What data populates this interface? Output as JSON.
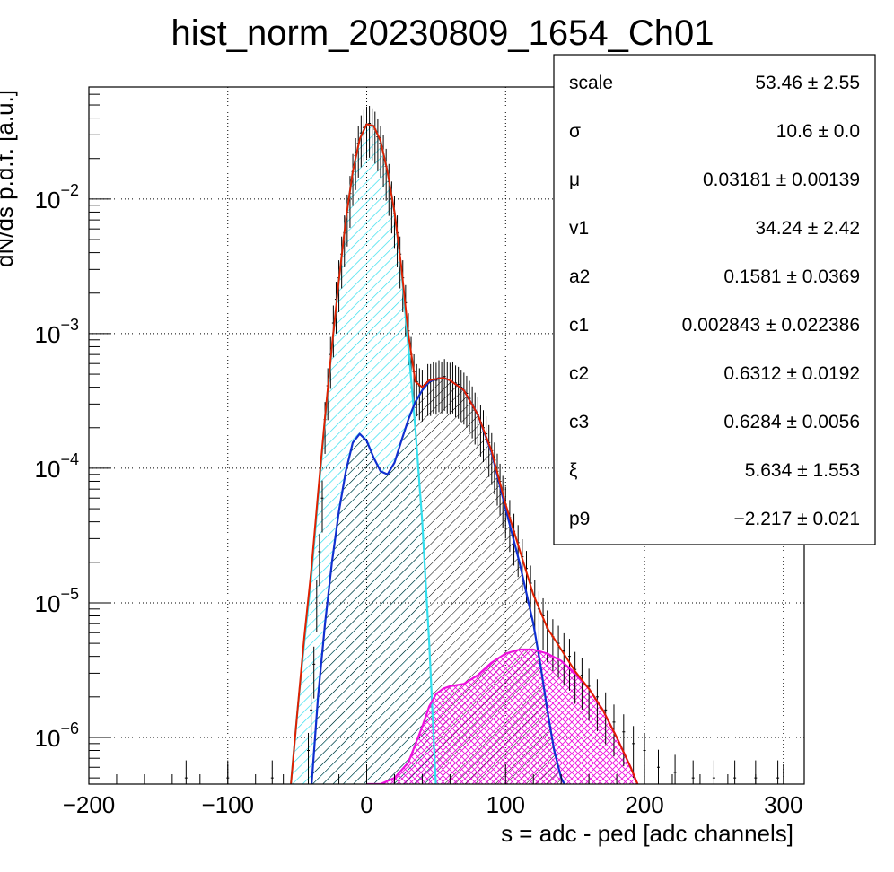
{
  "chart_data": {
    "type": "line",
    "title": "hist_norm_20230809_1654_Ch01",
    "xlabel": "s = adc - ped [adc channels]",
    "ylabel": "dN/ds p.d.f. [a.u.]",
    "xlim": [
      -200,
      315
    ],
    "ylim": [
      4.5e-07,
      0.068
    ],
    "y_scale": "log",
    "grid": true,
    "x_ticks": [
      {
        "value": -200,
        "label": "−200"
      },
      {
        "value": -100,
        "label": "−100"
      },
      {
        "value": 0,
        "label": "0"
      },
      {
        "value": 100,
        "label": "100"
      },
      {
        "value": 200,
        "label": "200"
      },
      {
        "value": 300,
        "label": "300"
      }
    ],
    "y_ticks": [
      {
        "value": 1e-06,
        "base": "10",
        "exp": "−6"
      },
      {
        "value": 1e-05,
        "base": "10",
        "exp": "−5"
      },
      {
        "value": 0.0001,
        "base": "10",
        "exp": "−4"
      },
      {
        "value": 0.001,
        "base": "10",
        "exp": "−3"
      },
      {
        "value": 0.01,
        "base": "10",
        "exp": "−2"
      }
    ],
    "series": [
      {
        "key": "pedestal",
        "color": "#33dfee",
        "hatch": "#33dfee",
        "x": [
          -55,
          -50,
          -45,
          -40,
          -35,
          -30,
          -25,
          -20,
          -15,
          -10,
          -5,
          0,
          5,
          10,
          15,
          20,
          25,
          30,
          35,
          40,
          45,
          50
        ],
        "y": [
          4e-07,
          1.5e-06,
          5e-06,
          1.5e-05,
          6e-05,
          0.00023,
          0.0008,
          0.0025,
          0.007,
          0.016,
          0.028,
          0.036,
          0.035,
          0.027,
          0.016,
          0.008,
          0.003,
          0.0008,
          0.0002,
          4e-05,
          5e-06,
          4e-07
        ]
      },
      {
        "key": "signal",
        "color": "#1030d0",
        "hatch": "#000000",
        "x": [
          -40,
          -35,
          -30,
          -25,
          -20,
          -15,
          -10,
          -5,
          0,
          5,
          10,
          15,
          20,
          25,
          30,
          35,
          40,
          45,
          50,
          55,
          60,
          70,
          80,
          90,
          100,
          110,
          120,
          125,
          130,
          135,
          140,
          145
        ],
        "y": [
          4e-07,
          2e-06,
          7e-06,
          2e-05,
          4.8e-05,
          9.5e-05,
          0.000155,
          0.00018,
          0.00016,
          0.00012,
          9.5e-05,
          9e-05,
          0.00011,
          0.00016,
          0.00023,
          0.00031,
          0.00038,
          0.00044,
          0.00046,
          0.00047,
          0.00045,
          0.00038,
          0.00025,
          0.00013,
          5e-05,
          2e-05,
          7e-06,
          3.5e-06,
          1.6e-06,
          8e-07,
          5e-07,
          4e-07
        ]
      },
      {
        "key": "tail",
        "color": "#ee10dd",
        "hatch": "#ee10dd",
        "x": [
          0,
          10,
          20,
          30,
          40,
          45,
          50,
          55,
          60,
          70,
          80,
          90,
          100,
          110,
          120,
          130,
          140,
          150,
          160,
          170,
          180,
          190,
          195
        ],
        "y": [
          4.5e-07,
          4.5e-07,
          5e-07,
          6.5e-07,
          1.2e-06,
          1.7e-06,
          2.1e-06,
          2.3e-06,
          2.4e-06,
          2.5e-06,
          2.9e-06,
          3.6e-06,
          4.2e-06,
          4.5e-06,
          4.5e-06,
          4.2e-06,
          3.7e-06,
          3e-06,
          2.3e-06,
          1.6e-06,
          1e-06,
          6e-07,
          4.5e-07
        ]
      },
      {
        "key": "total",
        "color": "#e02000",
        "hatch": "",
        "x": [
          -55,
          -50,
          -45,
          -40,
          -35,
          -30,
          -25,
          -20,
          -15,
          -10,
          -5,
          0,
          5,
          10,
          15,
          20,
          25,
          30,
          35,
          40,
          45,
          50,
          55,
          60,
          70,
          80,
          90,
          100,
          110,
          120,
          130,
          140,
          150,
          160,
          170,
          180,
          190,
          195
        ],
        "y": [
          4e-07,
          1.5e-06,
          5.5e-06,
          1.7e-05,
          6.5e-05,
          0.00024,
          0.00081,
          0.0025,
          0.007,
          0.016,
          0.028,
          0.036,
          0.035,
          0.027,
          0.016,
          0.008,
          0.0031,
          0.001,
          0.00044,
          0.0004,
          0.00045,
          0.00046,
          0.00047,
          0.00045,
          0.00038,
          0.00025,
          0.000134,
          5.4e-05,
          2.5e-05,
          1.15e-05,
          6.5e-06,
          4.5e-06,
          3.1e-06,
          2.3e-06,
          1.6e-06,
          1e-06,
          6e-07,
          4.5e-07
        ]
      }
    ],
    "data_points": [
      [
        -42,
        8e-07
      ],
      [
        -40,
        1.6e-06
      ],
      [
        -38,
        3.5e-06
      ],
      [
        -36,
        1.1e-05
      ],
      [
        -34,
        2.4e-05
      ],
      [
        -32,
        6e-05
      ],
      [
        -30,
        0.00023
      ],
      [
        -28,
        0.00041
      ],
      [
        -26,
        0.0007
      ],
      [
        -24,
        0.0012
      ],
      [
        -22,
        0.0018
      ],
      [
        -20,
        0.0026
      ],
      [
        -18,
        0.0039
      ],
      [
        -16,
        0.0056
      ],
      [
        -14,
        0.008
      ],
      [
        -12,
        0.011
      ],
      [
        -10,
        0.016
      ],
      [
        -8,
        0.021
      ],
      [
        -6,
        0.026
      ],
      [
        -4,
        0.031
      ],
      [
        -2,
        0.034
      ],
      [
        0,
        0.036
      ],
      [
        2,
        0.0365
      ],
      [
        4,
        0.035
      ],
      [
        6,
        0.033
      ],
      [
        8,
        0.029
      ],
      [
        10,
        0.026
      ],
      [
        12,
        0.022
      ],
      [
        14,
        0.0175
      ],
      [
        16,
        0.0135
      ],
      [
        18,
        0.01
      ],
      [
        20,
        0.0078
      ],
      [
        22,
        0.0056
      ],
      [
        24,
        0.0039
      ],
      [
        26,
        0.0026
      ],
      [
        28,
        0.0017
      ],
      [
        30,
        0.00105
      ],
      [
        32,
        0.0007
      ],
      [
        34,
        0.00052
      ],
      [
        36,
        0.00044
      ],
      [
        38,
        0.00041
      ],
      [
        40,
        0.0004
      ],
      [
        42,
        0.00042
      ],
      [
        44,
        0.00044
      ],
      [
        46,
        0.00044
      ],
      [
        48,
        0.00046
      ],
      [
        50,
        0.00045
      ],
      [
        52,
        0.00047
      ],
      [
        54,
        0.00046
      ],
      [
        56,
        0.00048
      ],
      [
        58,
        0.00046
      ],
      [
        60,
        0.00045
      ],
      [
        62,
        0.00046
      ],
      [
        64,
        0.00043
      ],
      [
        66,
        0.00042
      ],
      [
        68,
        0.0004
      ],
      [
        70,
        0.00038
      ],
      [
        72,
        0.00036
      ],
      [
        74,
        0.00033
      ],
      [
        76,
        0.0003
      ],
      [
        78,
        0.00027
      ],
      [
        80,
        0.00025
      ],
      [
        82,
        0.00022
      ],
      [
        84,
        0.0002
      ],
      [
        86,
        0.00018
      ],
      [
        88,
        0.000155
      ],
      [
        90,
        0.000135
      ],
      [
        92,
        0.000115
      ],
      [
        94,
        9.5e-05
      ],
      [
        96,
        8e-05
      ],
      [
        98,
        6.5e-05
      ],
      [
        100,
        5.4e-05
      ],
      [
        103,
        4.3e-05
      ],
      [
        106,
        3.4e-05
      ],
      [
        109,
        2.8e-05
      ],
      [
        112,
        2.2e-05
      ],
      [
        115,
        1.8e-05
      ],
      [
        118,
        1.4e-05
      ],
      [
        121,
        1.1e-05
      ],
      [
        124,
        9e-06
      ],
      [
        127,
        8e-06
      ],
      [
        130,
        6.5e-06
      ],
      [
        134,
        5.6e-06
      ],
      [
        138,
        5e-06
      ],
      [
        142,
        4.4e-06
      ],
      [
        146,
        4e-06
      ],
      [
        150,
        3.2e-06
      ],
      [
        155,
        2.9e-06
      ],
      [
        160,
        2.4e-06
      ],
      [
        166,
        2e-06
      ],
      [
        172,
        1.6e-06
      ],
      [
        178,
        1.3e-06
      ],
      [
        185,
        1.1e-06
      ],
      [
        192,
        9e-07
      ],
      [
        200,
        8e-07
      ],
      [
        210,
        6e-07
      ],
      [
        222,
        5.5e-07
      ],
      [
        235,
        5e-07
      ],
      [
        250,
        5e-07
      ],
      [
        265,
        5e-07
      ],
      [
        280,
        5e-07
      ],
      [
        296,
        5e-07
      ],
      [
        -130,
        5e-07
      ],
      [
        -100,
        5e-07
      ],
      [
        -68,
        5e-07
      ]
    ]
  },
  "stats": [
    {
      "label": "scale",
      "value": "53.46 ± 2.55"
    },
    {
      "label": "σ",
      "value": "10.6 ± 0.0"
    },
    {
      "label": "μ",
      "value": "0.03181 ± 0.00139"
    },
    {
      "label": "v1",
      "value": "34.24 ± 2.42"
    },
    {
      "label": "a2",
      "value": "0.1581 ± 0.0369"
    },
    {
      "label": "c1",
      "value": "0.002843 ± 0.022386"
    },
    {
      "label": "c2",
      "value": "0.6312 ± 0.0192"
    },
    {
      "label": "c3",
      "value": "0.6284 ± 0.0056"
    },
    {
      "label": "ξ",
      "value": "5.634 ± 1.553"
    },
    {
      "label": "p9",
      "value": "−2.217 ± 0.021"
    }
  ]
}
